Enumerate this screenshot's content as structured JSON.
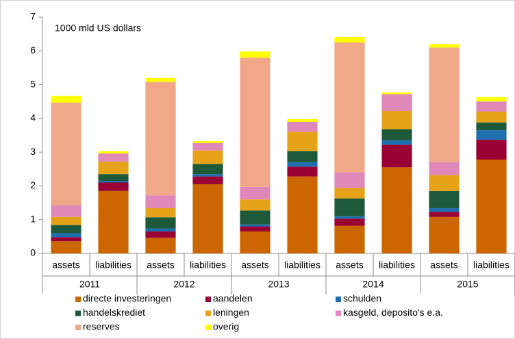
{
  "chart_data": {
    "type": "stacked-bar",
    "annotation": "1000 mld US dollars",
    "categories": [
      "assets",
      "liabilities",
      "assets",
      "liabilities",
      "assets",
      "liabilities",
      "assets",
      "liabilities",
      "assets",
      "liabilities"
    ],
    "groups": [
      "2011",
      "2012",
      "2013",
      "2014",
      "2015"
    ],
    "ylim": [
      0,
      7
    ],
    "yticks": [
      0,
      1,
      2,
      3,
      4,
      5,
      6,
      7
    ],
    "series": [
      {
        "name": "directe investeringen",
        "color": "#cc6600",
        "values": [
          0.36,
          1.85,
          0.46,
          2.05,
          0.65,
          2.28,
          0.82,
          2.55,
          1.08,
          2.78
        ]
      },
      {
        "name": "aandelen",
        "color": "#990033",
        "values": [
          0.12,
          0.25,
          0.19,
          0.23,
          0.15,
          0.29,
          0.21,
          0.67,
          0.15,
          0.59
        ]
      },
      {
        "name": "schulden",
        "color": "#1f6fb0",
        "values": [
          0.12,
          0.05,
          0.09,
          0.07,
          0.06,
          0.13,
          0.07,
          0.13,
          0.11,
          0.28
        ]
      },
      {
        "name": "handelskrediet",
        "color": "#1e5a3a",
        "values": [
          0.24,
          0.2,
          0.33,
          0.3,
          0.41,
          0.33,
          0.53,
          0.33,
          0.51,
          0.23
        ]
      },
      {
        "name": "leningen",
        "color": "#e6a31a",
        "values": [
          0.24,
          0.37,
          0.27,
          0.4,
          0.33,
          0.57,
          0.31,
          0.54,
          0.47,
          0.32
        ]
      },
      {
        "name": "kasgeld, deposito's e.a.",
        "color": "#e088b8",
        "values": [
          0.34,
          0.24,
          0.38,
          0.22,
          0.37,
          0.3,
          0.47,
          0.5,
          0.38,
          0.3
        ]
      },
      {
        "name": "reserves",
        "color": "#f0a888",
        "values": [
          3.05,
          0,
          3.36,
          0,
          3.83,
          0,
          3.84,
          0,
          3.4,
          0
        ]
      },
      {
        "name": "overig",
        "color": "#ffff00",
        "values": [
          0.2,
          0.07,
          0.12,
          0.06,
          0.18,
          0.08,
          0.16,
          0.05,
          0.1,
          0.13
        ]
      }
    ]
  }
}
